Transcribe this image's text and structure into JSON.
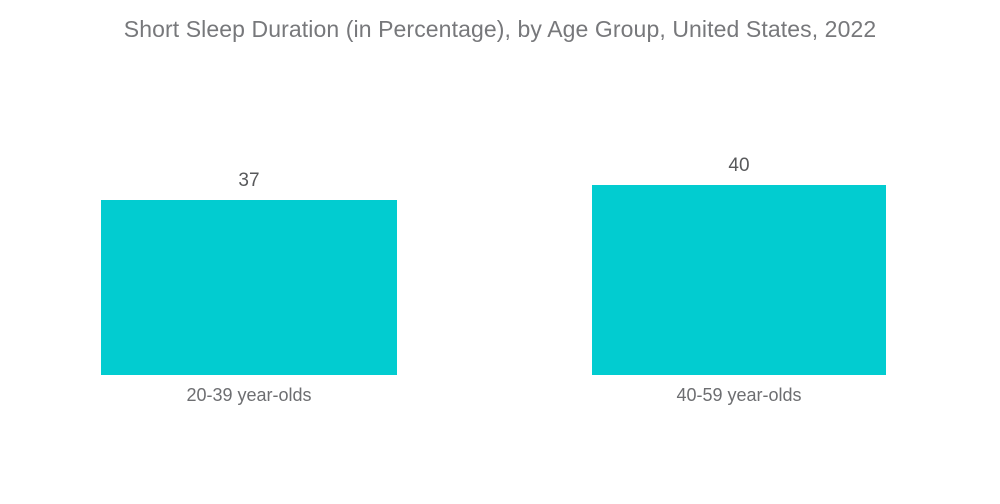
{
  "chart_data": {
    "type": "bar",
    "title": "Short Sleep Duration (in Percentage), by Age Group, United States, 2022",
    "categories": [
      "20-39 year-olds",
      "40-59 year-olds"
    ],
    "values": [
      37,
      40
    ],
    "xlabel": "",
    "ylabel": "",
    "grid": false,
    "axes_visible": false,
    "legend": "none",
    "data_labels": "above-bars"
  },
  "colors": {
    "bar": "#02CCD0",
    "title_text": "#77787B",
    "value_text": "#58595B",
    "category_text": "#6D6E71",
    "background": "#FFFFFF"
  }
}
